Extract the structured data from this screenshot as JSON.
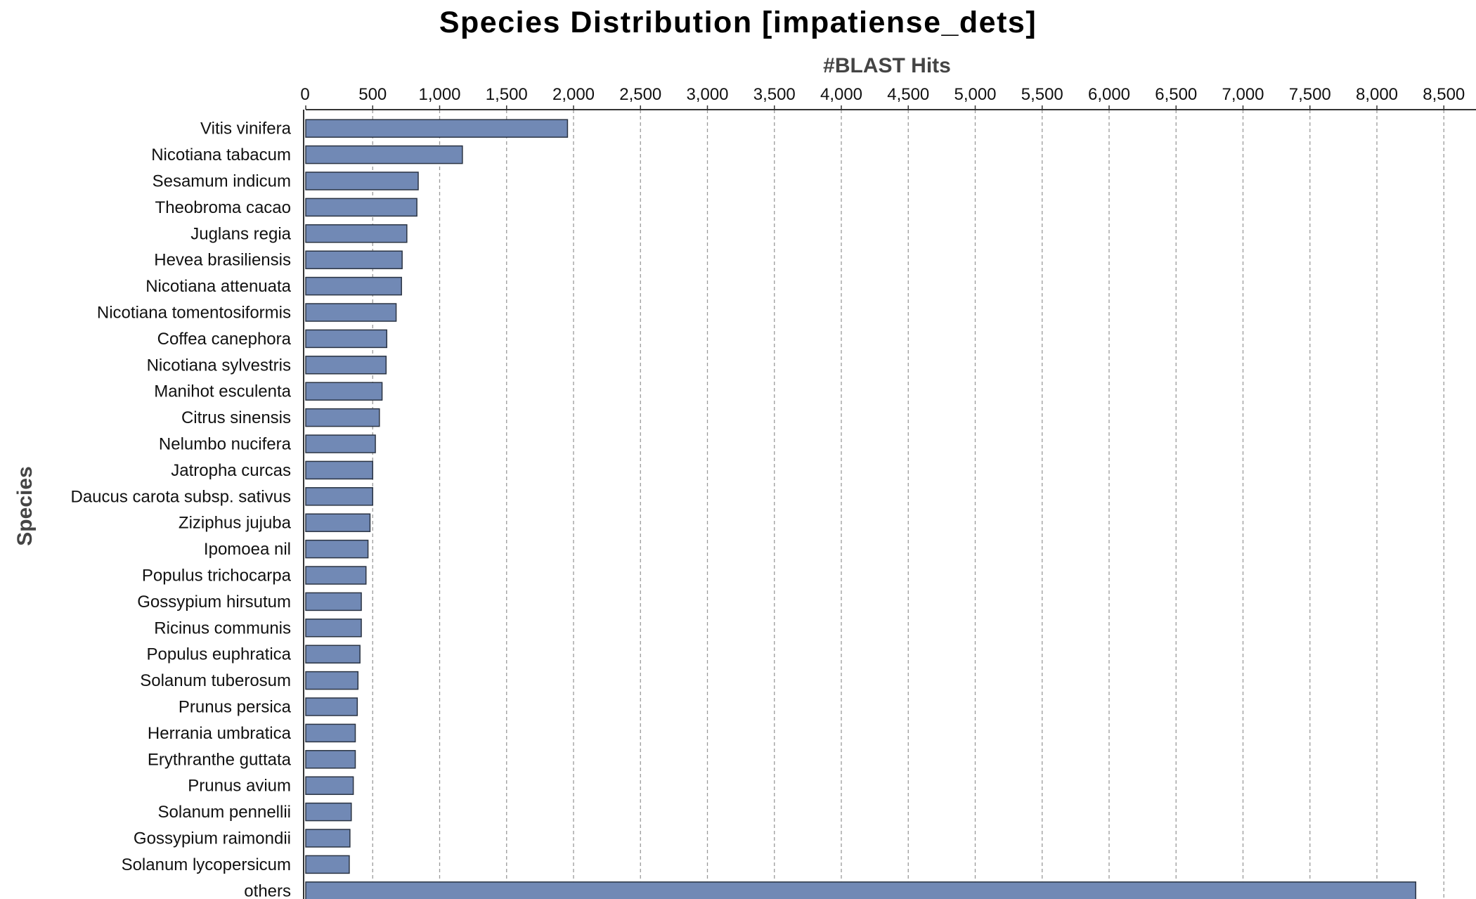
{
  "chart_data": {
    "type": "bar",
    "orientation": "horizontal",
    "title": "Species Distribution [impatiense_dets]",
    "xlabel": "#BLAST Hits",
    "ylabel": "Species",
    "xlim": [
      0,
      8700
    ],
    "x_ticks": [
      0,
      500,
      1000,
      1500,
      2000,
      2500,
      3000,
      3500,
      4000,
      4500,
      5000,
      5500,
      6000,
      6500,
      7000,
      7500,
      8000,
      8500
    ],
    "x_tick_labels": [
      "0",
      "500",
      "1,000",
      "1,500",
      "2,000",
      "2,500",
      "3,000",
      "3,500",
      "4,000",
      "4,500",
      "5,000",
      "5,500",
      "6,000",
      "6,500",
      "7,000",
      "7,500",
      "8,000",
      "8,500"
    ],
    "x_axis_position": "top",
    "grid": "vertical dashed",
    "bar_color": "#7189b5",
    "bar_edge_color": "#2b3443",
    "categories": [
      "Vitis vinifera",
      "Nicotiana tabacum",
      "Sesamum indicum",
      "Theobroma cacao",
      "Juglans regia",
      "Hevea brasiliensis",
      "Nicotiana attenuata",
      "Nicotiana tomentosiformis",
      "Coffea canephora",
      "Nicotiana sylvestris",
      "Manihot esculenta",
      "Citrus sinensis",
      "Nelumbo nucifera",
      "Jatropha curcas",
      "Daucus carota subsp. sativus",
      "Ziziphus jujuba",
      "Ipomoea nil",
      "Populus trichocarpa",
      "Gossypium hirsutum",
      "Ricinus communis",
      "Populus euphratica",
      "Solanum tuberosum",
      "Prunus persica",
      "Herrania umbratica",
      "Erythranthe guttata",
      "Prunus avium",
      "Solanum pennellii",
      "Gossypium raimondii",
      "Solanum lycopersicum",
      "others"
    ],
    "values": [
      1955,
      1170,
      840,
      830,
      755,
      720,
      715,
      675,
      605,
      600,
      570,
      550,
      520,
      500,
      500,
      480,
      465,
      450,
      415,
      415,
      405,
      390,
      385,
      370,
      370,
      355,
      340,
      330,
      325,
      8290
    ]
  }
}
